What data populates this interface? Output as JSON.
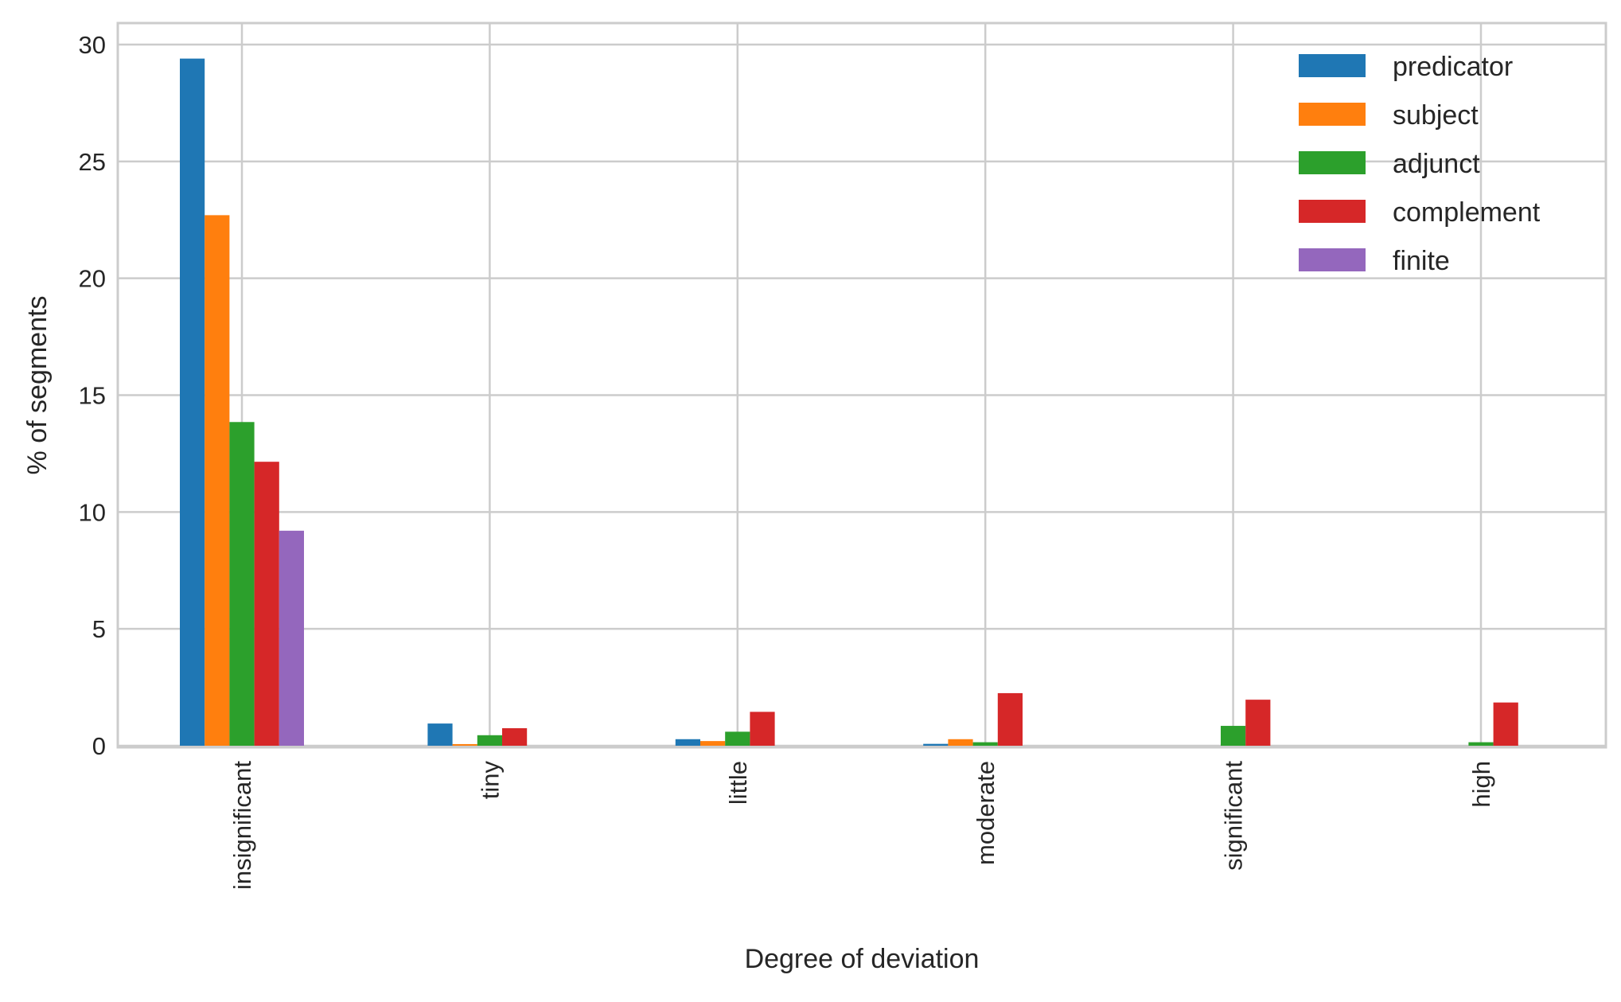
{
  "chart_data": {
    "type": "bar",
    "title": "",
    "xlabel": "Degree of deviation",
    "ylabel": "% of segments",
    "categories": [
      "insignificant",
      "tiny",
      "little",
      "moderate",
      "significant",
      "high"
    ],
    "series": [
      {
        "name": "predicator",
        "color": "#1f77b4",
        "values": [
          29.4,
          0.95,
          0.28,
          0.08,
          0.0,
          0.0
        ]
      },
      {
        "name": "subject",
        "color": "#ff7f0e",
        "values": [
          22.7,
          0.07,
          0.2,
          0.28,
          0.0,
          0.0
        ]
      },
      {
        "name": "adjunct",
        "color": "#2ca02c",
        "values": [
          13.85,
          0.45,
          0.6,
          0.15,
          0.85,
          0.15
        ]
      },
      {
        "name": "complement",
        "color": "#d62728",
        "values": [
          12.15,
          0.75,
          1.45,
          2.25,
          1.97,
          1.85
        ]
      },
      {
        "name": "finite",
        "color": "#9467bd",
        "values": [
          9.2,
          0.0,
          0.0,
          0.0,
          0.0,
          0.0
        ]
      }
    ],
    "ylim": [
      0,
      30.9
    ],
    "yticks": [
      0,
      5,
      10,
      15,
      20,
      25,
      30
    ],
    "grid": true,
    "legend_position": "top-right"
  }
}
